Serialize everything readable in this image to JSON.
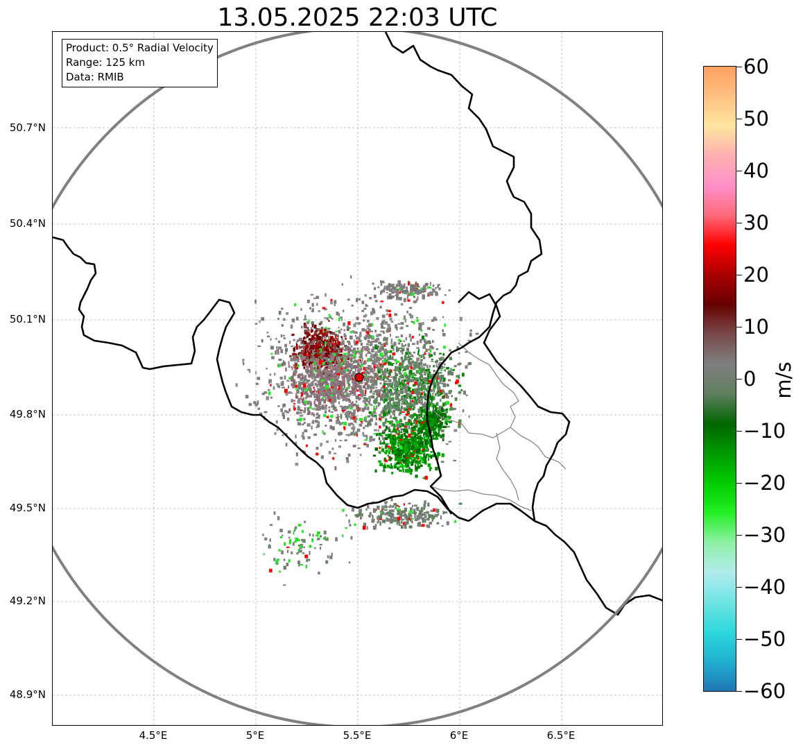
{
  "title": "13.05.2025 22:03 UTC",
  "info_box": {
    "product": "Product: 0.5° Radial Velocity",
    "range": "Range: 125 km",
    "data": "Data: RMIB"
  },
  "lat_labels": [
    "50.7°N",
    "50.4°N",
    "50.1°N",
    "49.8°N",
    "49.5°N",
    "49.2°N",
    "48.9°N"
  ],
  "lon_labels": [
    "4.5°E",
    "5°E",
    "5.5°E",
    "6°E",
    "6.5°E"
  ],
  "colorbar": {
    "unit": "m/s",
    "ticks": [
      "60",
      "50",
      "40",
      "30",
      "20",
      "10",
      "0",
      "−10",
      "−20",
      "−30",
      "−40",
      "−50",
      "−60"
    ],
    "min": -60,
    "max": 60,
    "stops": [
      "#1f77b4",
      "#1fb0d0",
      "#2ed8dc",
      "#70e4e4",
      "#b2ecec",
      "#8ef0a6",
      "#22f022",
      "#00cc00",
      "#009900",
      "#006600",
      "#5f7f5f",
      "#7f7f7f",
      "#7a4a4a",
      "#660000",
      "#aa0000",
      "#ff0000",
      "#ff6a7a",
      "#ff90c8",
      "#ffb0b0",
      "#ffe6a0",
      "#ffc080",
      "#ffa060"
    ]
  },
  "radar": {
    "site_lon": 5.505,
    "site_lat": 49.914,
    "range_km": 125,
    "bounds": {
      "lon_min": 4.0,
      "lon_max": 7.0,
      "lat_min": 48.8,
      "lat_max": 50.99
    }
  }
}
